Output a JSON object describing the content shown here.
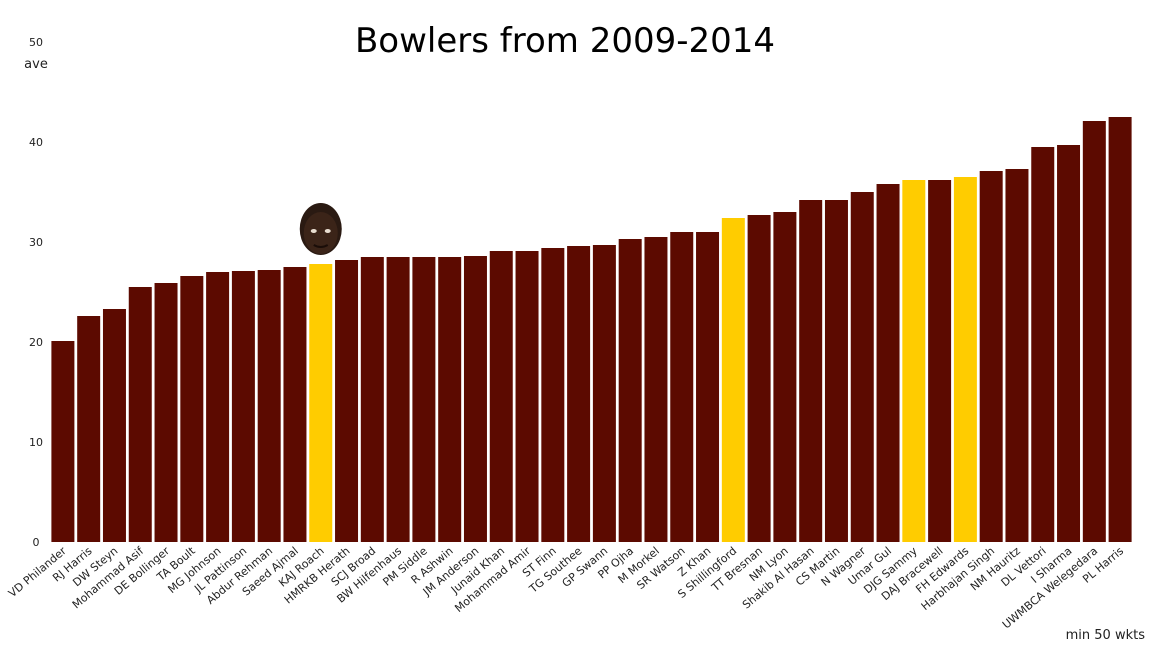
{
  "chart_data": {
    "type": "bar",
    "title": "Bowlers from 2009-2014",
    "ylabel": "ave",
    "footnote": "min 50 wkts",
    "ylim": [
      0,
      50
    ],
    "yticks": [
      0,
      10,
      20,
      30,
      40,
      50
    ],
    "grid": false,
    "colors": {
      "default": "#5c0a00",
      "highlight": "#ffcc00"
    },
    "highlighted": [
      "KAJ Roach",
      "S Shillingford",
      "DJG Sammy",
      "FH Edwards"
    ],
    "annotation": {
      "category": "KAJ Roach",
      "icon": "player-headshot-icon"
    },
    "categories": [
      "VD Philander",
      "RJ Harris",
      "DW Steyn",
      "Mohammad Asif",
      "DE Bollinger",
      "TA Boult",
      "MG Johnson",
      "JL Pattinson",
      "Abdur Rehman",
      "Saeed Ajmal",
      "KAJ Roach",
      "HMRKB Herath",
      "SCJ Broad",
      "BW Hilfenhaus",
      "PM Siddle",
      "R Ashwin",
      "JM Anderson",
      "Junaid Khan",
      "Mohammad Amir",
      "ST Finn",
      "TG Southee",
      "GP Swann",
      "PP Ojha",
      "M Morkel",
      "SR Watson",
      "Z Khan",
      "S Shillingford",
      "TT Bresnan",
      "NM Lyon",
      "Shakib Al Hasan",
      "CS Martin",
      "N Wagner",
      "Umar Gul",
      "DJG Sammy",
      "DAJ Bracewell",
      "FH Edwards",
      "Harbhajan Singh",
      "NM Hauritz",
      "DL Vettori",
      "I Sharma",
      "UWMBCA Welegedara",
      "PL Harris"
    ],
    "values": [
      20.1,
      22.6,
      23.3,
      25.5,
      25.9,
      26.6,
      27.0,
      27.1,
      27.2,
      27.5,
      27.8,
      28.2,
      28.5,
      28.5,
      28.5,
      28.5,
      28.6,
      29.1,
      29.1,
      29.4,
      29.6,
      29.7,
      30.3,
      30.5,
      31.0,
      31.0,
      32.4,
      32.7,
      33.0,
      34.2,
      34.2,
      35.0,
      35.8,
      36.2,
      36.2,
      36.5,
      37.1,
      37.3,
      39.5,
      39.7,
      42.1,
      42.5
    ]
  }
}
